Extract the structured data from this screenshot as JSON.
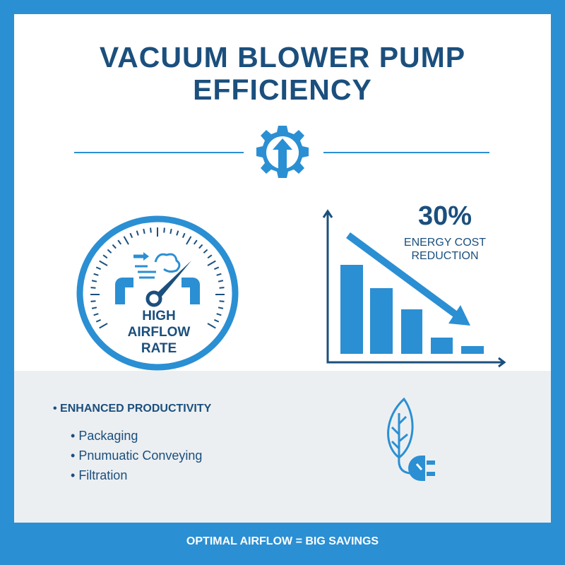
{
  "title_line1": "VACUUM BLOWER PUMP",
  "title_line2": "EFFICIENCY",
  "gauge": {
    "label_lines": [
      "HIGH",
      "AIRFLOW",
      "RATE"
    ],
    "icon": "gauge-airflow-icon"
  },
  "savings": {
    "value": "30%",
    "label_lines": [
      "ENERGY COST",
      "REDUCTION"
    ],
    "icon": "declining-bar-chart-icon"
  },
  "benefits": {
    "heading": "ENHANCED PRODUCTIVITY",
    "items": [
      "Packaging",
      "Pnumuatic Conveying",
      "Filtration"
    ]
  },
  "footer": "OPTIMAL AIRFLOW = BIG SAVINGS",
  "colors": {
    "accent": "#2b8fd3",
    "navy": "#1b4f7d",
    "lower_bg": "#eceff2"
  }
}
